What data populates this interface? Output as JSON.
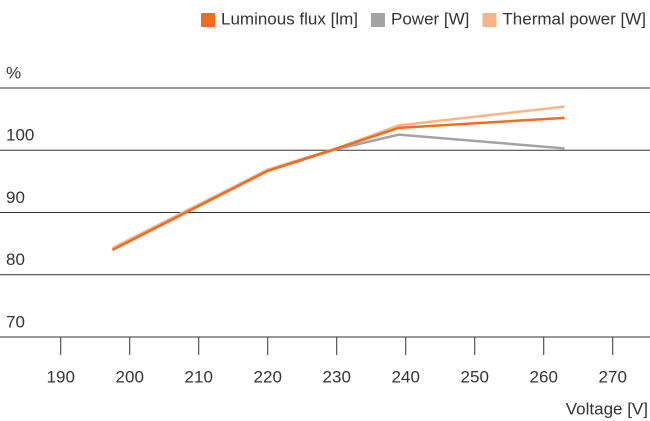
{
  "chart_data": {
    "type": "line",
    "x_label": "Voltage [V]",
    "x": [
      197.5,
      220,
      230,
      239,
      263
    ],
    "series": [
      {
        "name": "Luminous flux [lm]",
        "color": "#f26b21",
        "values": [
          84,
          96.7,
          100.3,
          103.6,
          105.2
        ]
      },
      {
        "name": "Power [W]",
        "color": "#a3a3a3",
        "values": [
          84,
          96.7,
          100.2,
          102.5,
          100.3
        ]
      },
      {
        "name": "Thermal power [W]",
        "color": "#f8b58a",
        "values": [
          84.3,
          96.9,
          100.3,
          104,
          107
        ]
      }
    ],
    "xlim": [
      181.2,
      275.4
    ],
    "xticks": [
      190,
      200,
      210,
      220,
      230,
      240,
      250,
      260,
      270
    ],
    "ylim": [
      70,
      110
    ],
    "yticks": [
      70,
      80,
      90,
      100,
      {
        "value": 110,
        "label": "%"
      }
    ],
    "grid": true,
    "legend": "top-right"
  }
}
